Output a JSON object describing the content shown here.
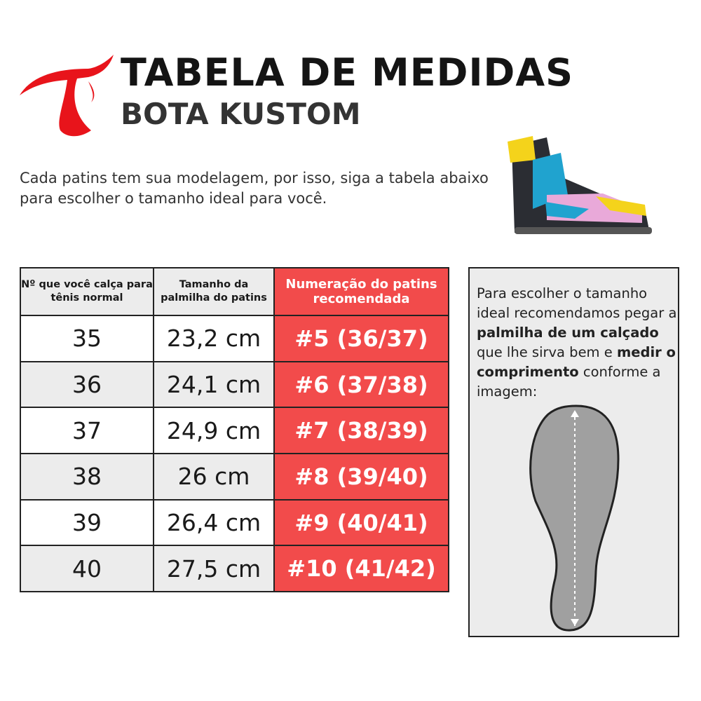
{
  "header": {
    "title": "TABELA DE MEDIDAS",
    "subtitle": "BOTA KUSTOM",
    "brand_color": "#e8141b"
  },
  "intro": "Cada patins tem sua modelagem, por isso, siga a tabela abaixo para escolher o tamanho ideal para você.",
  "table": {
    "headers": [
      "Nº que você calça para tênis normal",
      "Tamanho da palmilha do patins",
      "Numeração do patins recomendada"
    ],
    "rows": [
      [
        "35",
        "23,2 cm",
        "#5 (36/37)"
      ],
      [
        "36",
        "24,1 cm",
        "#6 (37/38)"
      ],
      [
        "37",
        "24,9 cm",
        "#7 (38/39)"
      ],
      [
        "38",
        "26 cm",
        "#8 (39/40)"
      ],
      [
        "39",
        "26,4 cm",
        "#9 (40/41)"
      ],
      [
        "40",
        "27,5 cm",
        "#10 (41/42)"
      ]
    ],
    "highlight_color": "#f24b4b"
  },
  "info": {
    "t1": "Para escolher o tamanho ideal recomendamos pegar a ",
    "b1": "palmilha de um calçado",
    "t2": " que lhe sirva bem e ",
    "b2": "medir o comprimento",
    "t3": " conforme a imagem:"
  }
}
